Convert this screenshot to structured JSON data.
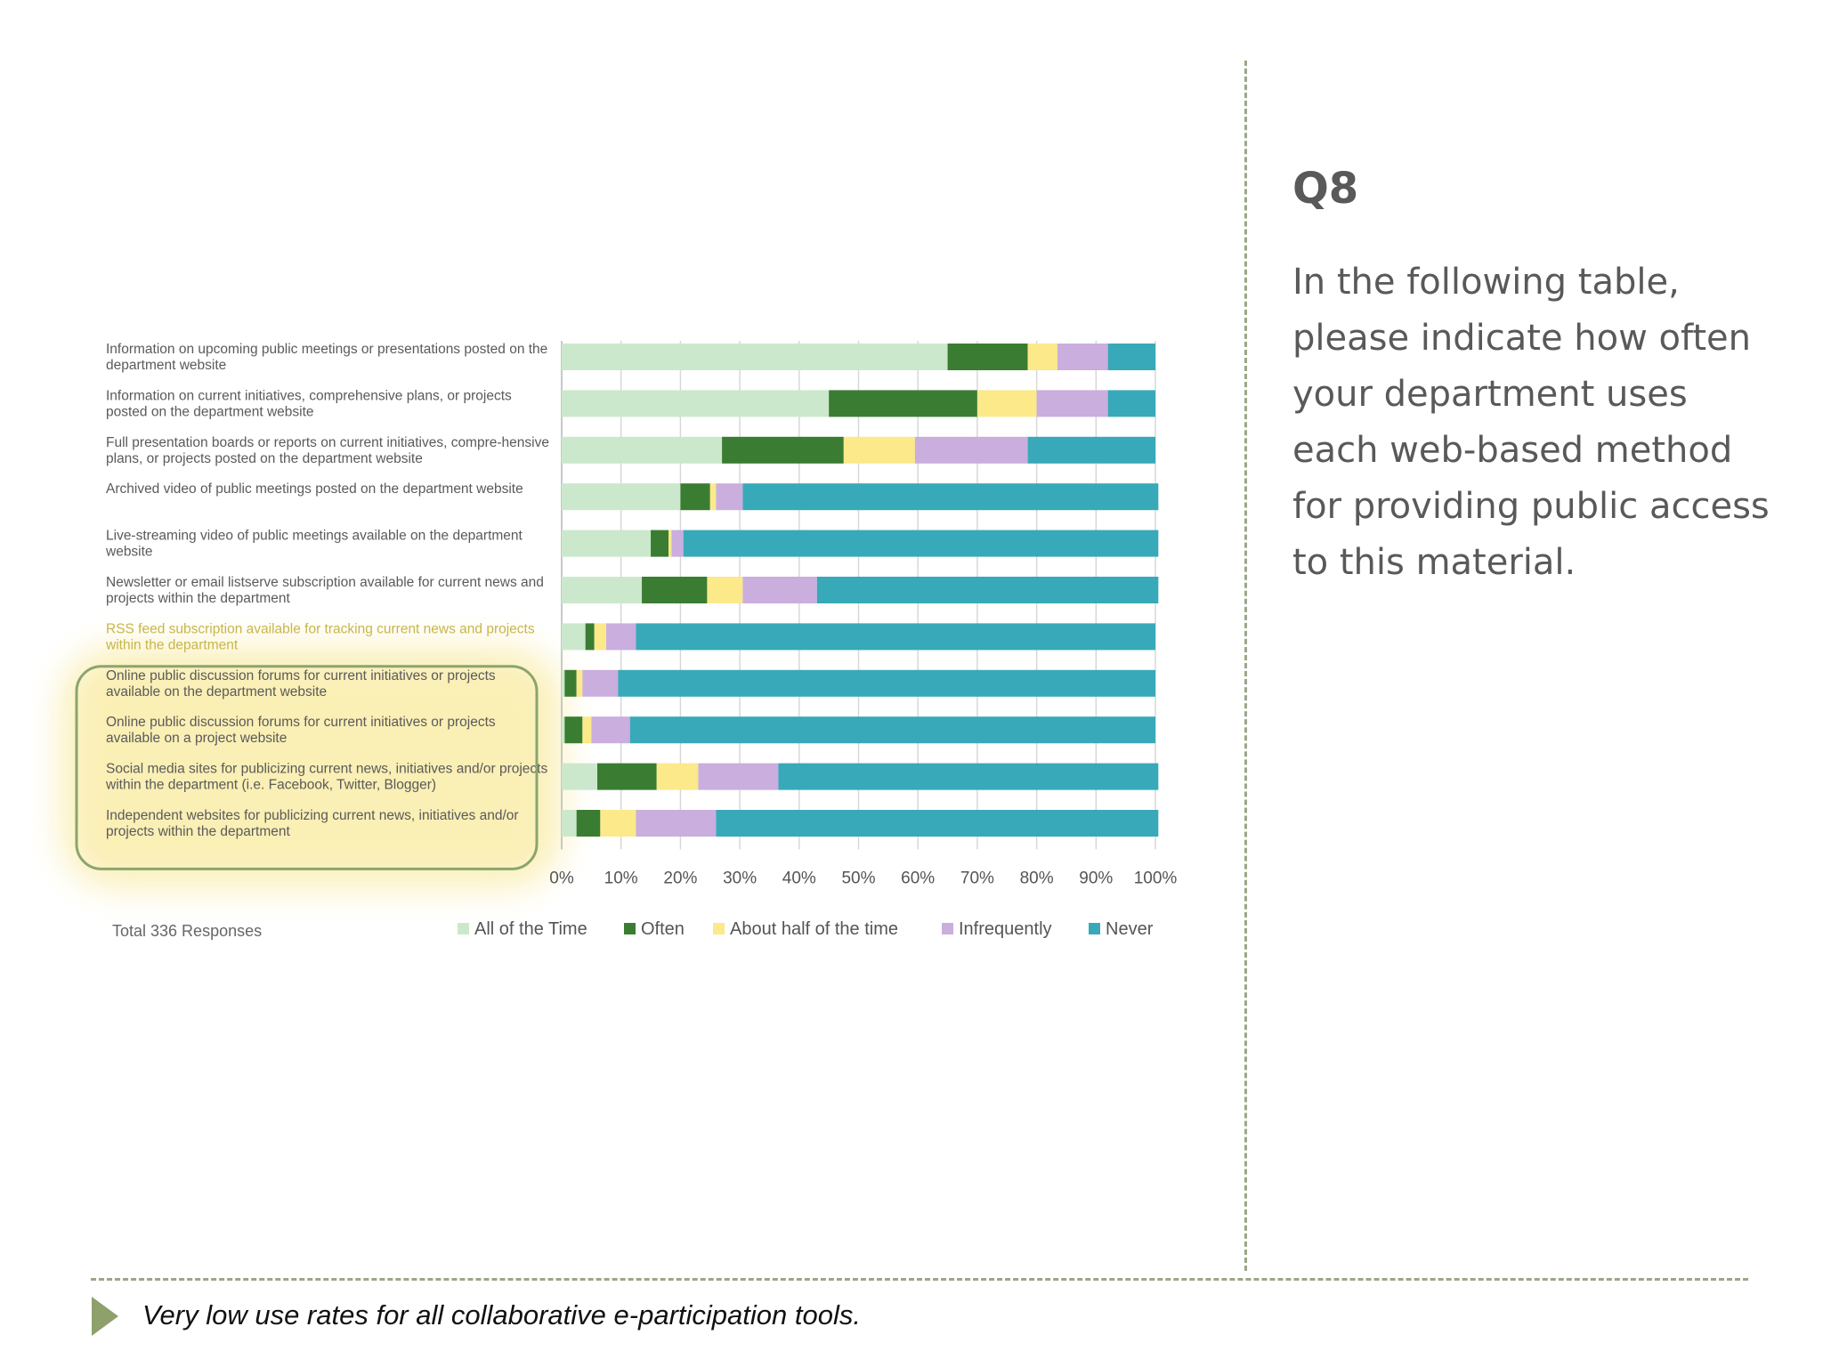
{
  "side_panel": {
    "title": "Q8",
    "body": "In the following table, please indicate how often your department uses each web-based method for providing public access to this material."
  },
  "footer": {
    "text": "Very low use rates for all collaborative e-participation tools."
  },
  "chart_data": {
    "type": "bar",
    "orientation": "horizontal",
    "stacked": true,
    "note": "Total 336 Responses",
    "categories": [
      "Information on upcoming public meetings or presentations posted on the department website",
      "Information on current initiatives, comprehensive plans, or projects posted on the department website",
      "Full presentation boards or reports on current initiatives, compre-hensive plans, or projects posted on the department website",
      "Archived video of public meetings posted on the department website",
      "Live-streaming video of public meetings available on the department website",
      "Newsletter or email listserve subscription available for current news and projects within the department",
      "RSS feed subscription available for tracking current news and projects within the department",
      "Online public discussion forums for current initiatives or projects available on the department website",
      "Online public discussion forums for current initiatives or projects available on a project website",
      "Social media sites for publicizing current news, initiatives and/or projects within the department (i.e. Facebook, Twitter, Blogger)",
      "Independent websites for publicizing current news, initiatives and/or projects within the department"
    ],
    "series": [
      {
        "name": "All of the Time",
        "color": "#cce8cc",
        "values": [
          65,
          45,
          27,
          20,
          15,
          13.5,
          4,
          0.5,
          0.5,
          6,
          2.5
        ]
      },
      {
        "name": "Often",
        "color": "#3a7d32",
        "values": [
          13.5,
          25,
          20.5,
          5,
          3,
          11,
          1.5,
          2,
          3,
          10,
          4
        ]
      },
      {
        "name": "About half of the time",
        "color": "#fbe98a",
        "values": [
          5,
          10,
          12,
          1,
          0.5,
          6,
          2,
          1,
          1.5,
          7,
          6
        ]
      },
      {
        "name": "Infrequently",
        "color": "#c9aede",
        "values": [
          8.5,
          12,
          19,
          4.5,
          2,
          12.5,
          5,
          6,
          6.5,
          13.5,
          13.5
        ]
      },
      {
        "name": "Never",
        "color": "#38a9b8",
        "values": [
          8,
          8,
          21.5,
          70,
          80,
          57.5,
          87.5,
          90.5,
          88.5,
          64,
          74.5
        ]
      }
    ],
    "xlim": [
      0,
      100
    ],
    "xticks": [
      "0%",
      "10%",
      "20%",
      "30%",
      "40%",
      "50%",
      "60%",
      "70%",
      "80%",
      "90%",
      "100%"
    ],
    "legend": "bottom",
    "grid": true,
    "highlight": {
      "highlighted_rows": [
        7,
        8,
        9,
        10
      ],
      "emphasized_label_row": 6,
      "box_color": "#8aa56e",
      "glow_color": "#f7e27a"
    }
  }
}
